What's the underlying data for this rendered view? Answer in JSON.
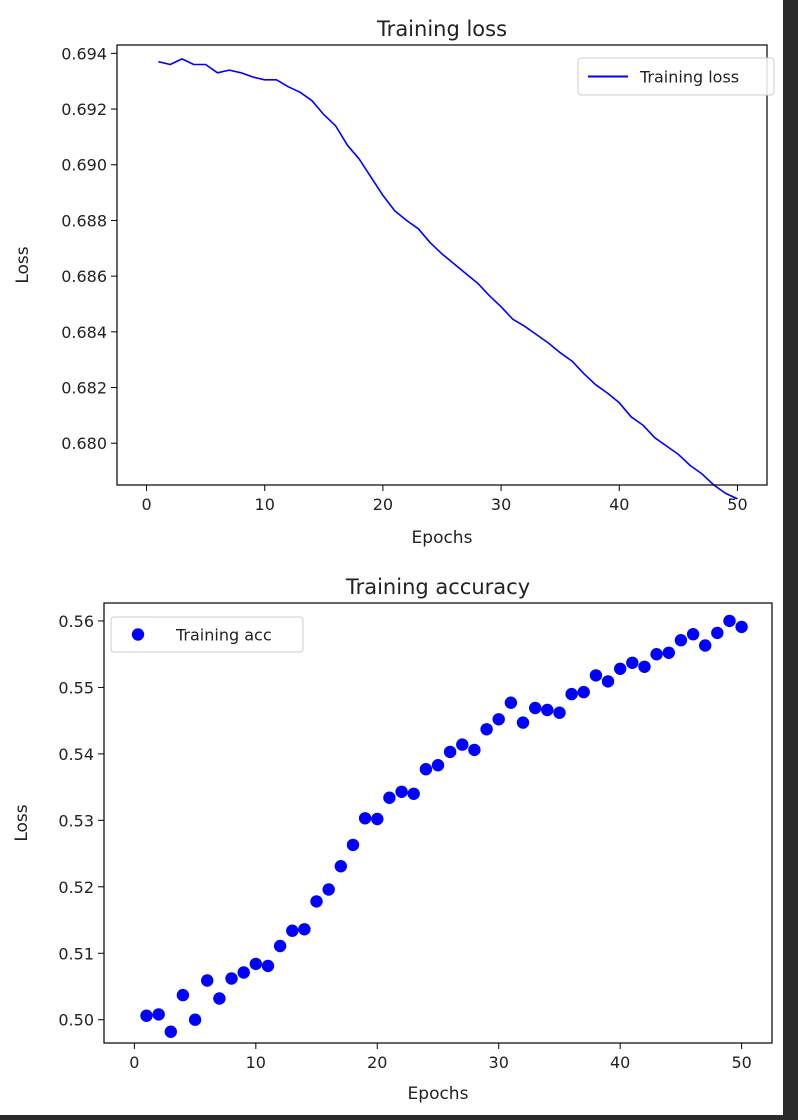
{
  "colors": {
    "series": "#0000ff",
    "axis": "#000000",
    "text": "#222222",
    "background": "#2b2b2b",
    "legend_border": "#cccccc"
  },
  "chart_data": [
    {
      "type": "line",
      "title": "Training  loss",
      "xlabel": "Epochs",
      "ylabel": "Loss",
      "xlim": [
        -2.5,
        52.5
      ],
      "ylim": [
        0.6785,
        0.6943
      ],
      "xticks": [
        0,
        10,
        20,
        30,
        40,
        50
      ],
      "xtick_labels": [
        "0",
        "10",
        "20",
        "30",
        "40",
        "50"
      ],
      "yticks": [
        0.68,
        0.682,
        0.684,
        0.686,
        0.688,
        0.69,
        0.692,
        0.694
      ],
      "ytick_labels": [
        "0.680",
        "0.682",
        "0.684",
        "0.686",
        "0.688",
        "0.690",
        "0.692",
        "0.694"
      ],
      "grid": false,
      "legend_position": "upper right",
      "series": [
        {
          "name": "Training loss",
          "x": [
            1,
            2,
            3,
            4,
            5,
            6,
            7,
            8,
            9,
            10,
            11,
            12,
            13,
            14,
            15,
            16,
            17,
            18,
            19,
            20,
            21,
            22,
            23,
            24,
            25,
            26,
            27,
            28,
            29,
            30,
            31,
            32,
            33,
            34,
            35,
            36,
            37,
            38,
            39,
            40,
            41,
            42,
            43,
            44,
            45,
            46,
            47,
            48,
            49,
            50
          ],
          "y": [
            0.6937,
            0.6936,
            0.6938,
            0.6936,
            0.6936,
            0.6933,
            0.6934,
            0.6933,
            0.69315,
            0.69305,
            0.69305,
            0.6928,
            0.6926,
            0.6923,
            0.6918,
            0.6914,
            0.6907,
            0.6902,
            0.68955,
            0.6889,
            0.68835,
            0.688,
            0.6877,
            0.6872,
            0.6868,
            0.68645,
            0.6861,
            0.68575,
            0.6853,
            0.6849,
            0.68445,
            0.6842,
            0.6839,
            0.6836,
            0.68325,
            0.68295,
            0.6825,
            0.6821,
            0.6818,
            0.68145,
            0.68095,
            0.68065,
            0.6802,
            0.6799,
            0.6796,
            0.6792,
            0.6789,
            0.6785,
            0.6782,
            0.678
          ]
        }
      ]
    },
    {
      "type": "scatter",
      "title": "Training accuracy",
      "xlabel": "Epochs",
      "ylabel": "Loss",
      "xlim": [
        -2.5,
        52.5
      ],
      "ylim": [
        0.4965,
        0.5627
      ],
      "xticks": [
        0,
        10,
        20,
        30,
        40,
        50
      ],
      "xtick_labels": [
        "0",
        "10",
        "20",
        "30",
        "40",
        "50"
      ],
      "yticks": [
        0.5,
        0.51,
        0.52,
        0.53,
        0.54,
        0.55,
        0.56
      ],
      "ytick_labels": [
        "0.50",
        "0.51",
        "0.52",
        "0.53",
        "0.54",
        "0.55",
        "0.56"
      ],
      "grid": false,
      "legend_position": "upper left",
      "series": [
        {
          "name": "Training acc",
          "x": [
            1,
            2,
            3,
            4,
            5,
            6,
            7,
            8,
            9,
            10,
            11,
            12,
            13,
            14,
            15,
            16,
            17,
            18,
            19,
            20,
            21,
            22,
            23,
            24,
            25,
            26,
            27,
            28,
            29,
            30,
            31,
            32,
            33,
            34,
            35,
            36,
            37,
            38,
            39,
            40,
            41,
            42,
            43,
            44,
            45,
            46,
            47,
            48,
            49,
            50
          ],
          "y": [
            0.5006,
            0.5008,
            0.4982,
            0.5037,
            0.5,
            0.5059,
            0.5032,
            0.5062,
            0.5071,
            0.5084,
            0.5081,
            0.5111,
            0.5134,
            0.5136,
            0.5178,
            0.5196,
            0.5231,
            0.5263,
            0.5303,
            0.5302,
            0.5334,
            0.5343,
            0.534,
            0.5377,
            0.5383,
            0.5403,
            0.5414,
            0.5406,
            0.5437,
            0.5452,
            0.5477,
            0.5447,
            0.5469,
            0.5466,
            0.5462,
            0.549,
            0.5493,
            0.5518,
            0.5509,
            0.5528,
            0.5537,
            0.5531,
            0.555,
            0.5552,
            0.5571,
            0.558,
            0.5563,
            0.5582,
            0.56,
            0.5591
          ]
        }
      ]
    }
  ]
}
